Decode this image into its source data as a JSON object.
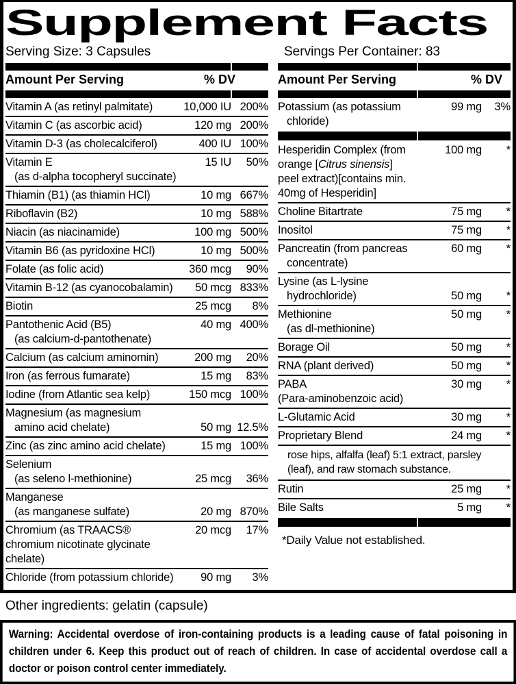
{
  "title": "Supplement Facts",
  "serving": {
    "size": "Serving Size: 3 Capsules",
    "per_container": "Servings Per Container: 83"
  },
  "header": {
    "amount": "Amount Per Serving",
    "dv": "% DV"
  },
  "facts": {
    "left": [
      {
        "type": "row",
        "lines": [
          {
            "t": "Vitamin A (as retinyl palmitate)",
            "amt": "10,000 IU",
            "dv": "200%"
          }
        ]
      },
      {
        "type": "row",
        "lines": [
          {
            "t": "Vitamin C (as ascorbic acid)",
            "amt": "120 mg",
            "dv": "200%"
          }
        ]
      },
      {
        "type": "row",
        "lines": [
          {
            "t": "Vitamin D-3 (as cholecalciferol)",
            "amt": "400 IU",
            "dv": "100%"
          }
        ]
      },
      {
        "type": "row",
        "lines": [
          {
            "t": "Vitamin E",
            "amt": "15 IU",
            "dv": "50%"
          },
          {
            "t": "(as d-alpha tocopheryl succinate)",
            "ind": true
          }
        ]
      },
      {
        "type": "row",
        "lines": [
          {
            "t": "Thiamin (B1) (as thiamin HCl)",
            "amt": "10 mg",
            "dv": "667%"
          }
        ]
      },
      {
        "type": "row",
        "lines": [
          {
            "t": "Riboflavin (B2)",
            "amt": "10 mg",
            "dv": "588%"
          }
        ]
      },
      {
        "type": "row",
        "lines": [
          {
            "t": "Niacin (as niacinamide)",
            "amt": "100 mg",
            "dv": "500%"
          }
        ]
      },
      {
        "type": "row",
        "lines": [
          {
            "t": "Vitamin B6 (as pyridoxine HCl)",
            "amt": "10 mg",
            "dv": "500%"
          }
        ]
      },
      {
        "type": "row",
        "lines": [
          {
            "t": "Folate (as folic acid)",
            "amt": "360 mcg",
            "dv": "90%"
          }
        ]
      },
      {
        "type": "row",
        "lines": [
          {
            "t": "Vitamin B-12 (as cyanocobalamin)",
            "amt": "50 mcg",
            "dv": "833%"
          }
        ]
      },
      {
        "type": "row",
        "lines": [
          {
            "t": "Biotin",
            "amt": "25 mcg",
            "dv": "8%"
          }
        ]
      },
      {
        "type": "row",
        "lines": [
          {
            "t": "Pantothenic Acid (B5)",
            "amt": "40 mg",
            "dv": "400%"
          },
          {
            "t": "(as calcium-d-pantothenate)",
            "ind": true
          }
        ]
      },
      {
        "type": "row",
        "lines": [
          {
            "t": "Calcium (as calcium aminomin)",
            "amt": "200 mg",
            "dv": "20%"
          }
        ]
      },
      {
        "type": "row",
        "lines": [
          {
            "t": "Iron (as ferrous fumarate)",
            "amt": "15 mg",
            "dv": "83%"
          }
        ]
      },
      {
        "type": "row",
        "lines": [
          {
            "t": "Iodine (from Atlantic sea kelp)",
            "amt": "150 mcg",
            "dv": "100%"
          }
        ]
      },
      {
        "type": "row",
        "lines": [
          {
            "t": "Magnesium (as magnesium"
          },
          {
            "t": "amino acid chelate)",
            "ind": true,
            "amt": "50 mg",
            "dv": "12.5%"
          }
        ]
      },
      {
        "type": "row",
        "lines": [
          {
            "t": "Zinc (as zinc amino acid chelate)",
            "amt": "15 mg",
            "dv": "100%"
          }
        ]
      },
      {
        "type": "row",
        "lines": [
          {
            "t": "Selenium"
          },
          {
            "t": "(as seleno l-methionine)",
            "ind": true,
            "amt": "25 mcg",
            "dv": "36%"
          }
        ]
      },
      {
        "type": "row",
        "lines": [
          {
            "t": "Manganese"
          },
          {
            "t": "(as manganese sulfate)",
            "ind": true,
            "amt": "20 mg",
            "dv": "870%"
          }
        ]
      },
      {
        "type": "row",
        "lines": [
          {
            "t": "Chromium (as TRAACS®",
            "amt": "20 mcg",
            "dv": "17%"
          },
          {
            "t": "chromium nicotinate glycinate"
          },
          {
            "t": "chelate)"
          }
        ]
      },
      {
        "type": "row",
        "lines": [
          {
            "t": "Chloride (from potassium chloride)",
            "amt": "90 mg",
            "dv": "3%"
          }
        ]
      }
    ],
    "right": [
      {
        "type": "row",
        "lines": [
          {
            "t": "Potassium (as potassium",
            "amt": "99 mg",
            "dv": "3%"
          },
          {
            "t": "chloride)",
            "ind": true
          }
        ]
      },
      {
        "type": "bar"
      },
      {
        "type": "row",
        "lines": [
          {
            "t": "Hesperidin Complex (from",
            "amt": "100 mg",
            "dv": "*"
          },
          {
            "parts": [
              {
                "t": "orange ["
              },
              {
                "t": "Citrus sinensis",
                "i": true
              },
              {
                "t": "]"
              }
            ]
          },
          {
            "t": "peel extract)[contains min."
          },
          {
            "t": "40mg of Hesperidin]"
          }
        ]
      },
      {
        "type": "row",
        "lines": [
          {
            "t": "Choline Bitartrate",
            "amt": "75 mg",
            "dv": "*"
          }
        ]
      },
      {
        "type": "row",
        "lines": [
          {
            "t": "Inositol",
            "amt": "75 mg",
            "dv": "*"
          }
        ]
      },
      {
        "type": "row",
        "lines": [
          {
            "t": "Pancreatin (from pancreas",
            "amt": "60 mg",
            "dv": "*"
          },
          {
            "t": "concentrate)",
            "ind": true
          }
        ]
      },
      {
        "type": "row",
        "lines": [
          {
            "t": "Lysine (as L-lysine"
          },
          {
            "t": "hydrochloride)",
            "ind": true,
            "amt": "50 mg",
            "dv": "*"
          }
        ]
      },
      {
        "type": "row",
        "lines": [
          {
            "t": "Methionine",
            "amt": "50 mg",
            "dv": "*"
          },
          {
            "t": "(as dl-methionine)",
            "ind": true
          }
        ]
      },
      {
        "type": "row",
        "lines": [
          {
            "t": "Borage Oil",
            "amt": "50 mg",
            "dv": "*"
          }
        ]
      },
      {
        "type": "row",
        "lines": [
          {
            "t": "RNA (plant derived)",
            "amt": "50 mg",
            "dv": "*"
          }
        ]
      },
      {
        "type": "row",
        "lines": [
          {
            "t": "PABA",
            "amt": "30 mg",
            "dv": "*"
          },
          {
            "t": "(Para-aminobenzoic acid)"
          }
        ]
      },
      {
        "type": "row",
        "lines": [
          {
            "t": "L-Glutamic Acid",
            "amt": "30 mg",
            "dv": "*"
          }
        ]
      },
      {
        "type": "row",
        "lines": [
          {
            "t": "Proprietary Blend",
            "amt": "24 mg",
            "dv": "*"
          }
        ]
      },
      {
        "type": "desc",
        "lines": [
          {
            "t": "rose hips, alfalfa (leaf) 5:1 extract, parsley"
          },
          {
            "t": "(leaf), and raw stomach substance."
          }
        ]
      },
      {
        "type": "row",
        "lines": [
          {
            "t": "Rutin",
            "amt": "25 mg",
            "dv": "*"
          }
        ]
      },
      {
        "type": "row",
        "lines": [
          {
            "t": "Bile Salts",
            "amt": "5 mg",
            "dv": "*"
          }
        ]
      },
      {
        "type": "bar"
      },
      {
        "type": "note",
        "t": "*Daily Value not established."
      }
    ]
  },
  "other_ingredients": "Other ingredients: gelatin (capsule)",
  "warning": "Warning: Accidental overdose of iron-containing products is a leading cause of fatal poisoning in children under 6.  Keep this product out of reach of children. In case of accidental overdose call a doctor or poison control center immediately.",
  "colors": {
    "ink": "#000000",
    "paper": "#ffffff"
  }
}
